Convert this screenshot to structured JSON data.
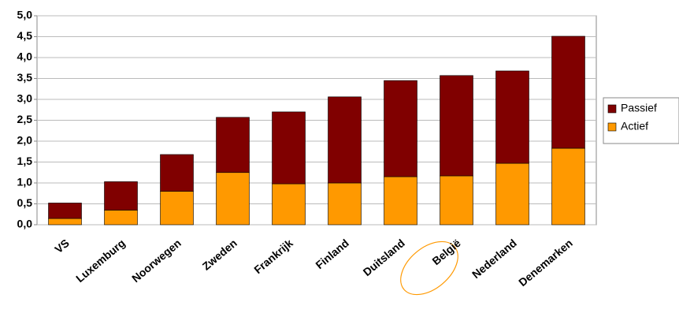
{
  "chart_data": {
    "type": "stacked_bar",
    "categories": [
      "VS",
      "Luxemburg",
      "Noorwegen",
      "Zweden",
      "Frankrijk",
      "Finland",
      "Duitsland",
      "België",
      "Nederland",
      "Denemarken"
    ],
    "series": [
      {
        "name": "Actief",
        "color": "#ff9900",
        "values": [
          0.15,
          0.35,
          0.8,
          1.25,
          0.98,
          1.0,
          1.15,
          1.17,
          1.47,
          1.83
        ]
      },
      {
        "name": "Passief",
        "color": "#800000",
        "values": [
          0.37,
          0.68,
          0.88,
          1.32,
          1.72,
          2.06,
          2.3,
          2.4,
          2.21,
          2.68
        ]
      }
    ],
    "ylim": [
      0,
      5
    ],
    "yticks": [
      {
        "value": 0,
        "label": "0,0"
      },
      {
        "value": 0.5,
        "label": "0,5"
      },
      {
        "value": 1,
        "label": "1,0"
      },
      {
        "value": 1.5,
        "label": "1,5"
      },
      {
        "value": 2,
        "label": "2,0"
      },
      {
        "value": 2.5,
        "label": "2,5"
      },
      {
        "value": 3,
        "label": "3,0"
      },
      {
        "value": 3.5,
        "label": "3,5"
      },
      {
        "value": 4,
        "label": "4,0"
      },
      {
        "value": 4.5,
        "label": "4,5"
      },
      {
        "value": 5,
        "label": "5,0"
      }
    ],
    "grid": true,
    "legend": "right"
  }
}
